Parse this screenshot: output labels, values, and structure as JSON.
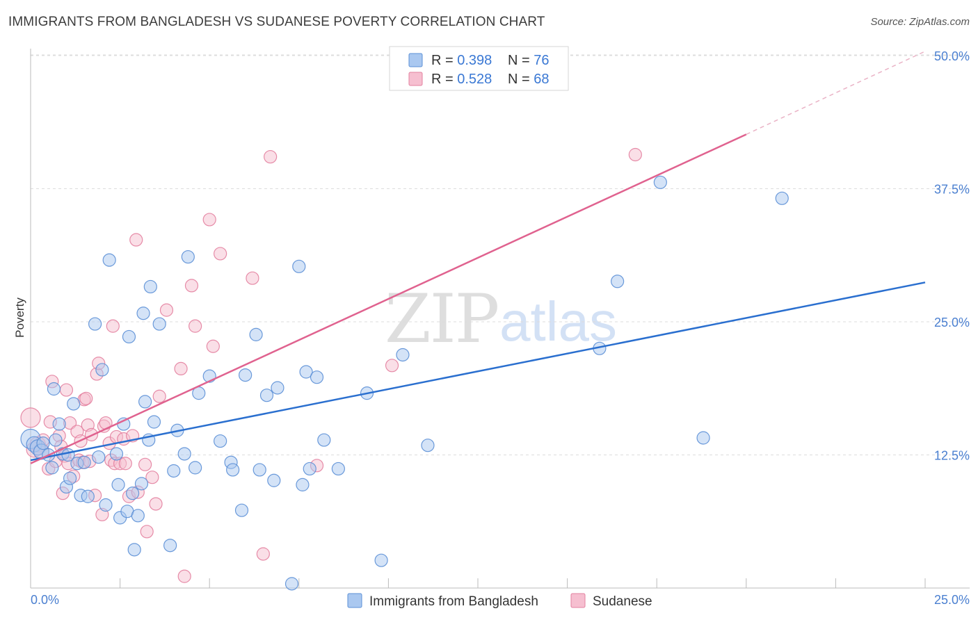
{
  "title": "IMMIGRANTS FROM BANGLADESH VS SUDANESE POVERTY CORRELATION CHART",
  "source": "Source: ZipAtlas.com",
  "watermark": {
    "zip": "ZIP",
    "atlas": "atlas"
  },
  "colors": {
    "blue_fill": "#aac8f0",
    "blue_stroke": "#5b8fd6",
    "blue_line": "#2a6fcf",
    "pink_fill": "#f6bfd0",
    "pink_stroke": "#e3809f",
    "pink_line": "#e0628f",
    "grid": "#dcdcdc",
    "tick_text": "#4a7fd0"
  },
  "legend": {
    "rows": [
      {
        "r_label": "R = ",
        "r_value": "0.398",
        "n_label": "N = ",
        "n_value": "76"
      },
      {
        "r_label": "R = ",
        "r_value": "0.528",
        "n_label": "N = ",
        "n_value": "68"
      }
    ]
  },
  "chart_data": {
    "type": "scatter",
    "title": "IMMIGRANTS FROM BANGLADESH VS SUDANESE POVERTY CORRELATION CHART",
    "xlabel": "",
    "ylabel": "Poverty",
    "xlim": [
      0,
      25
    ],
    "ylim": [
      0,
      50
    ],
    "x_tick_labels": [
      "0.0%",
      "25.0%"
    ],
    "y_ticks": [
      12.5,
      25.0,
      37.5,
      50.0
    ],
    "y_tick_labels": [
      "12.5%",
      "25.0%",
      "37.5%",
      "50.0%"
    ],
    "grid": true,
    "series": [
      {
        "name": "Immigrants from Bangladesh",
        "color": "blue",
        "R": 0.398,
        "N": 76,
        "trend": {
          "x": [
            0,
            25
          ],
          "y": [
            12.0,
            28.7
          ]
        },
        "points": [
          [
            0.0,
            14.0
          ],
          [
            0.1,
            13.5
          ],
          [
            0.2,
            13.2
          ],
          [
            0.3,
            12.8
          ],
          [
            0.35,
            13.6
          ],
          [
            0.5,
            12.5
          ],
          [
            0.6,
            11.3
          ],
          [
            0.65,
            18.7
          ],
          [
            0.7,
            13.9
          ],
          [
            0.8,
            15.4
          ],
          [
            0.9,
            12.6
          ],
          [
            1.0,
            9.5
          ],
          [
            1.05,
            12.5
          ],
          [
            1.1,
            10.3
          ],
          [
            1.2,
            17.3
          ],
          [
            1.3,
            11.7
          ],
          [
            1.4,
            8.7
          ],
          [
            1.5,
            11.8
          ],
          [
            1.6,
            8.6
          ],
          [
            1.8,
            24.8
          ],
          [
            1.9,
            12.3
          ],
          [
            2.0,
            20.5
          ],
          [
            2.1,
            7.8
          ],
          [
            2.2,
            30.8
          ],
          [
            2.4,
            12.6
          ],
          [
            2.45,
            9.7
          ],
          [
            2.5,
            6.6
          ],
          [
            2.6,
            15.4
          ],
          [
            2.7,
            7.2
          ],
          [
            2.75,
            23.6
          ],
          [
            2.85,
            8.9
          ],
          [
            2.9,
            3.6
          ],
          [
            3.0,
            6.8
          ],
          [
            3.1,
            9.8
          ],
          [
            3.15,
            25.8
          ],
          [
            3.2,
            17.5
          ],
          [
            3.3,
            13.9
          ],
          [
            3.35,
            28.3
          ],
          [
            3.45,
            15.6
          ],
          [
            3.6,
            24.8
          ],
          [
            3.9,
            4.0
          ],
          [
            4.0,
            11.0
          ],
          [
            4.1,
            14.8
          ],
          [
            4.3,
            12.6
          ],
          [
            4.4,
            31.1
          ],
          [
            4.6,
            11.3
          ],
          [
            4.7,
            18.3
          ],
          [
            5.0,
            19.9
          ],
          [
            5.3,
            13.8
          ],
          [
            5.6,
            11.8
          ],
          [
            5.65,
            11.1
          ],
          [
            5.9,
            7.3
          ],
          [
            6.0,
            20.0
          ],
          [
            6.3,
            23.8
          ],
          [
            6.4,
            11.1
          ],
          [
            6.6,
            18.1
          ],
          [
            6.8,
            10.1
          ],
          [
            6.9,
            18.8
          ],
          [
            7.3,
            0.4
          ],
          [
            7.5,
            30.2
          ],
          [
            7.6,
            9.7
          ],
          [
            7.7,
            20.3
          ],
          [
            7.8,
            11.2
          ],
          [
            8.0,
            19.8
          ],
          [
            8.2,
            13.9
          ],
          [
            8.6,
            11.2
          ],
          [
            9.4,
            18.3
          ],
          [
            9.8,
            2.6
          ],
          [
            10.4,
            21.9
          ],
          [
            11.1,
            13.4
          ],
          [
            15.9,
            22.5
          ],
          [
            16.4,
            28.8
          ],
          [
            18.8,
            14.1
          ],
          [
            17.6,
            38.1
          ],
          [
            21.0,
            36.6
          ]
        ]
      },
      {
        "name": "Sudanese",
        "color": "pink",
        "R": 0.528,
        "N": 68,
        "trend": {
          "x": [
            0,
            20.0
          ],
          "y": [
            11.7,
            42.6
          ],
          "dashed_to": {
            "x": 25,
            "y": 50.4
          }
        },
        "points": [
          [
            0.0,
            16.0
          ],
          [
            0.1,
            13.0
          ],
          [
            0.2,
            13.5
          ],
          [
            0.3,
            12.9
          ],
          [
            0.35,
            13.9
          ],
          [
            0.5,
            11.2
          ],
          [
            0.55,
            15.6
          ],
          [
            0.6,
            19.4
          ],
          [
            0.7,
            11.9
          ],
          [
            0.8,
            14.3
          ],
          [
            0.85,
            13.3
          ],
          [
            0.9,
            8.9
          ],
          [
            0.95,
            12.4
          ],
          [
            1.0,
            18.6
          ],
          [
            1.05,
            11.7
          ],
          [
            1.1,
            15.5
          ],
          [
            1.2,
            10.5
          ],
          [
            1.3,
            14.7
          ],
          [
            1.35,
            12.0
          ],
          [
            1.4,
            13.8
          ],
          [
            1.45,
            11.8
          ],
          [
            1.5,
            17.7
          ],
          [
            1.55,
            17.8
          ],
          [
            1.6,
            15.3
          ],
          [
            1.65,
            11.9
          ],
          [
            1.7,
            14.4
          ],
          [
            1.8,
            8.7
          ],
          [
            1.85,
            20.1
          ],
          [
            1.9,
            21.1
          ],
          [
            2.0,
            6.9
          ],
          [
            2.05,
            15.2
          ],
          [
            2.1,
            15.5
          ],
          [
            2.2,
            13.6
          ],
          [
            2.25,
            12.0
          ],
          [
            2.3,
            24.6
          ],
          [
            2.35,
            11.7
          ],
          [
            2.4,
            14.2
          ],
          [
            2.5,
            11.7
          ],
          [
            2.6,
            14.0
          ],
          [
            2.65,
            11.7
          ],
          [
            2.75,
            8.6
          ],
          [
            2.85,
            14.3
          ],
          [
            2.95,
            32.7
          ],
          [
            3.0,
            9.0
          ],
          [
            3.2,
            11.6
          ],
          [
            3.25,
            5.3
          ],
          [
            3.4,
            10.4
          ],
          [
            3.5,
            7.9
          ],
          [
            3.6,
            18.0
          ],
          [
            3.8,
            26.1
          ],
          [
            4.2,
            20.6
          ],
          [
            4.3,
            1.1
          ],
          [
            4.5,
            28.4
          ],
          [
            4.6,
            24.6
          ],
          [
            5.0,
            34.6
          ],
          [
            5.1,
            22.7
          ],
          [
            5.3,
            31.4
          ],
          [
            6.2,
            29.1
          ],
          [
            6.5,
            3.2
          ],
          [
            6.7,
            40.5
          ],
          [
            8.0,
            11.5
          ],
          [
            10.1,
            20.9
          ],
          [
            16.9,
            40.7
          ]
        ]
      }
    ]
  },
  "bottom_legend": {
    "items": [
      {
        "label": "Immigrants from Bangladesh"
      },
      {
        "label": "Sudanese"
      }
    ]
  }
}
